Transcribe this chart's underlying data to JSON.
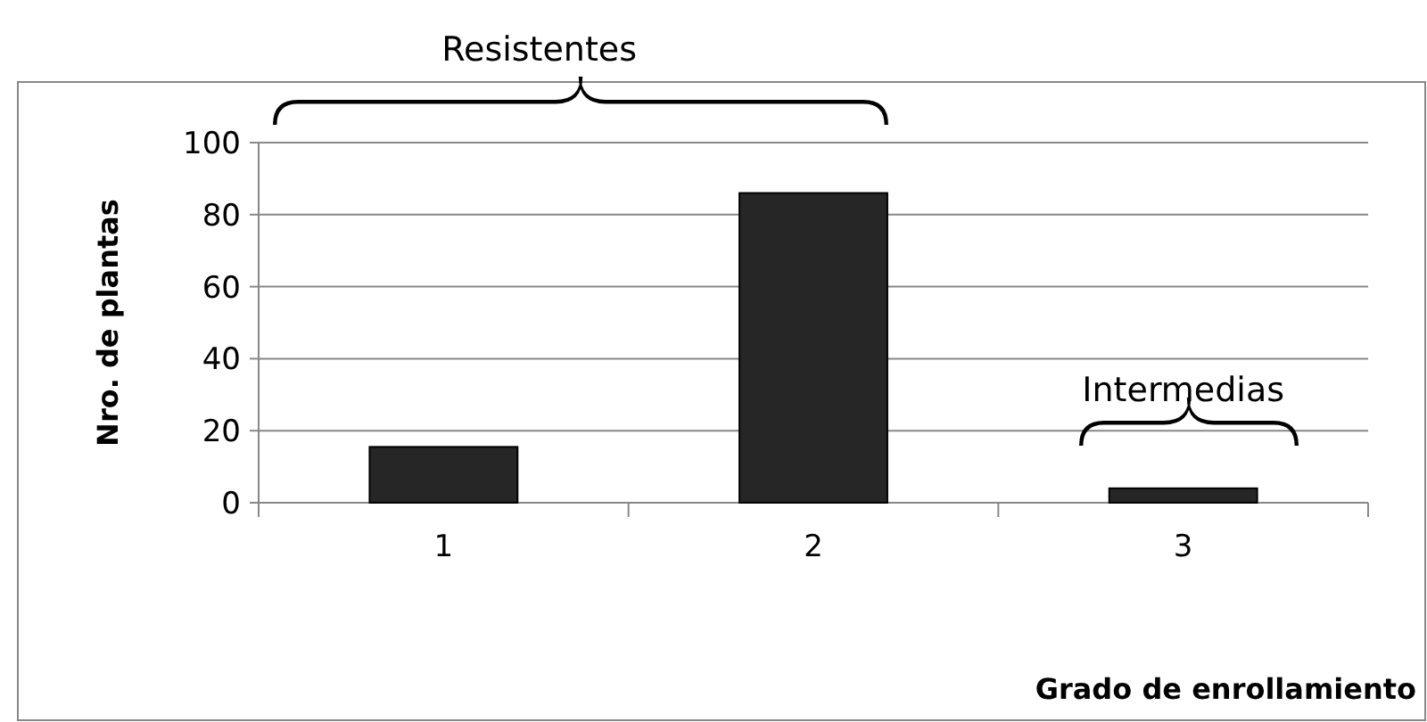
{
  "chart_data": {
    "type": "bar",
    "categories": [
      "1",
      "2",
      "3"
    ],
    "values": [
      15.5,
      86,
      4
    ],
    "color": "#262626",
    "ylim": [
      0,
      100
    ],
    "yticks": [
      0,
      20,
      40,
      60,
      80,
      100
    ],
    "grid": "y",
    "xlabel": "Grado de enrollamiento",
    "ylabel": "Nro. de plantas",
    "annotations": [
      "Resistentes",
      "Intermedias"
    ]
  }
}
